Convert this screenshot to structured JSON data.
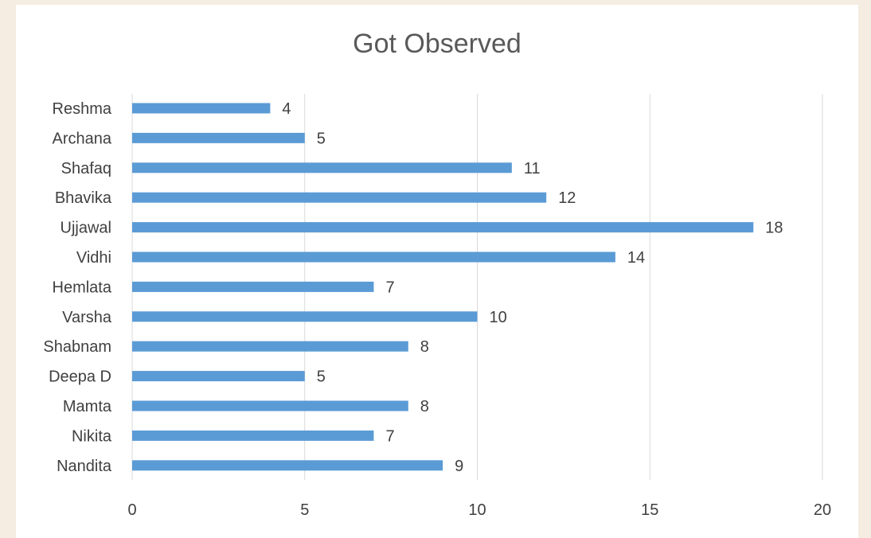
{
  "chart_data": {
    "type": "bar",
    "orientation": "horizontal",
    "title": "Got Observed",
    "xlabel": "",
    "ylabel": "",
    "categories": [
      "Reshma",
      "Archana",
      "Shafaq",
      "Bhavika",
      "Ujjawal",
      "Vidhi",
      "Hemlata",
      "Varsha",
      "Shabnam",
      "Deepa D",
      "Mamta",
      "Nikita",
      "Nandita"
    ],
    "values": [
      4,
      5,
      11,
      12,
      18,
      14,
      7,
      10,
      8,
      5,
      8,
      7,
      9
    ],
    "xlim": [
      0,
      20
    ],
    "xticks": [
      0,
      5,
      10,
      15,
      20
    ],
    "grid": "vertical",
    "data_labels": true,
    "bar_color": "#5b9bd5"
  }
}
